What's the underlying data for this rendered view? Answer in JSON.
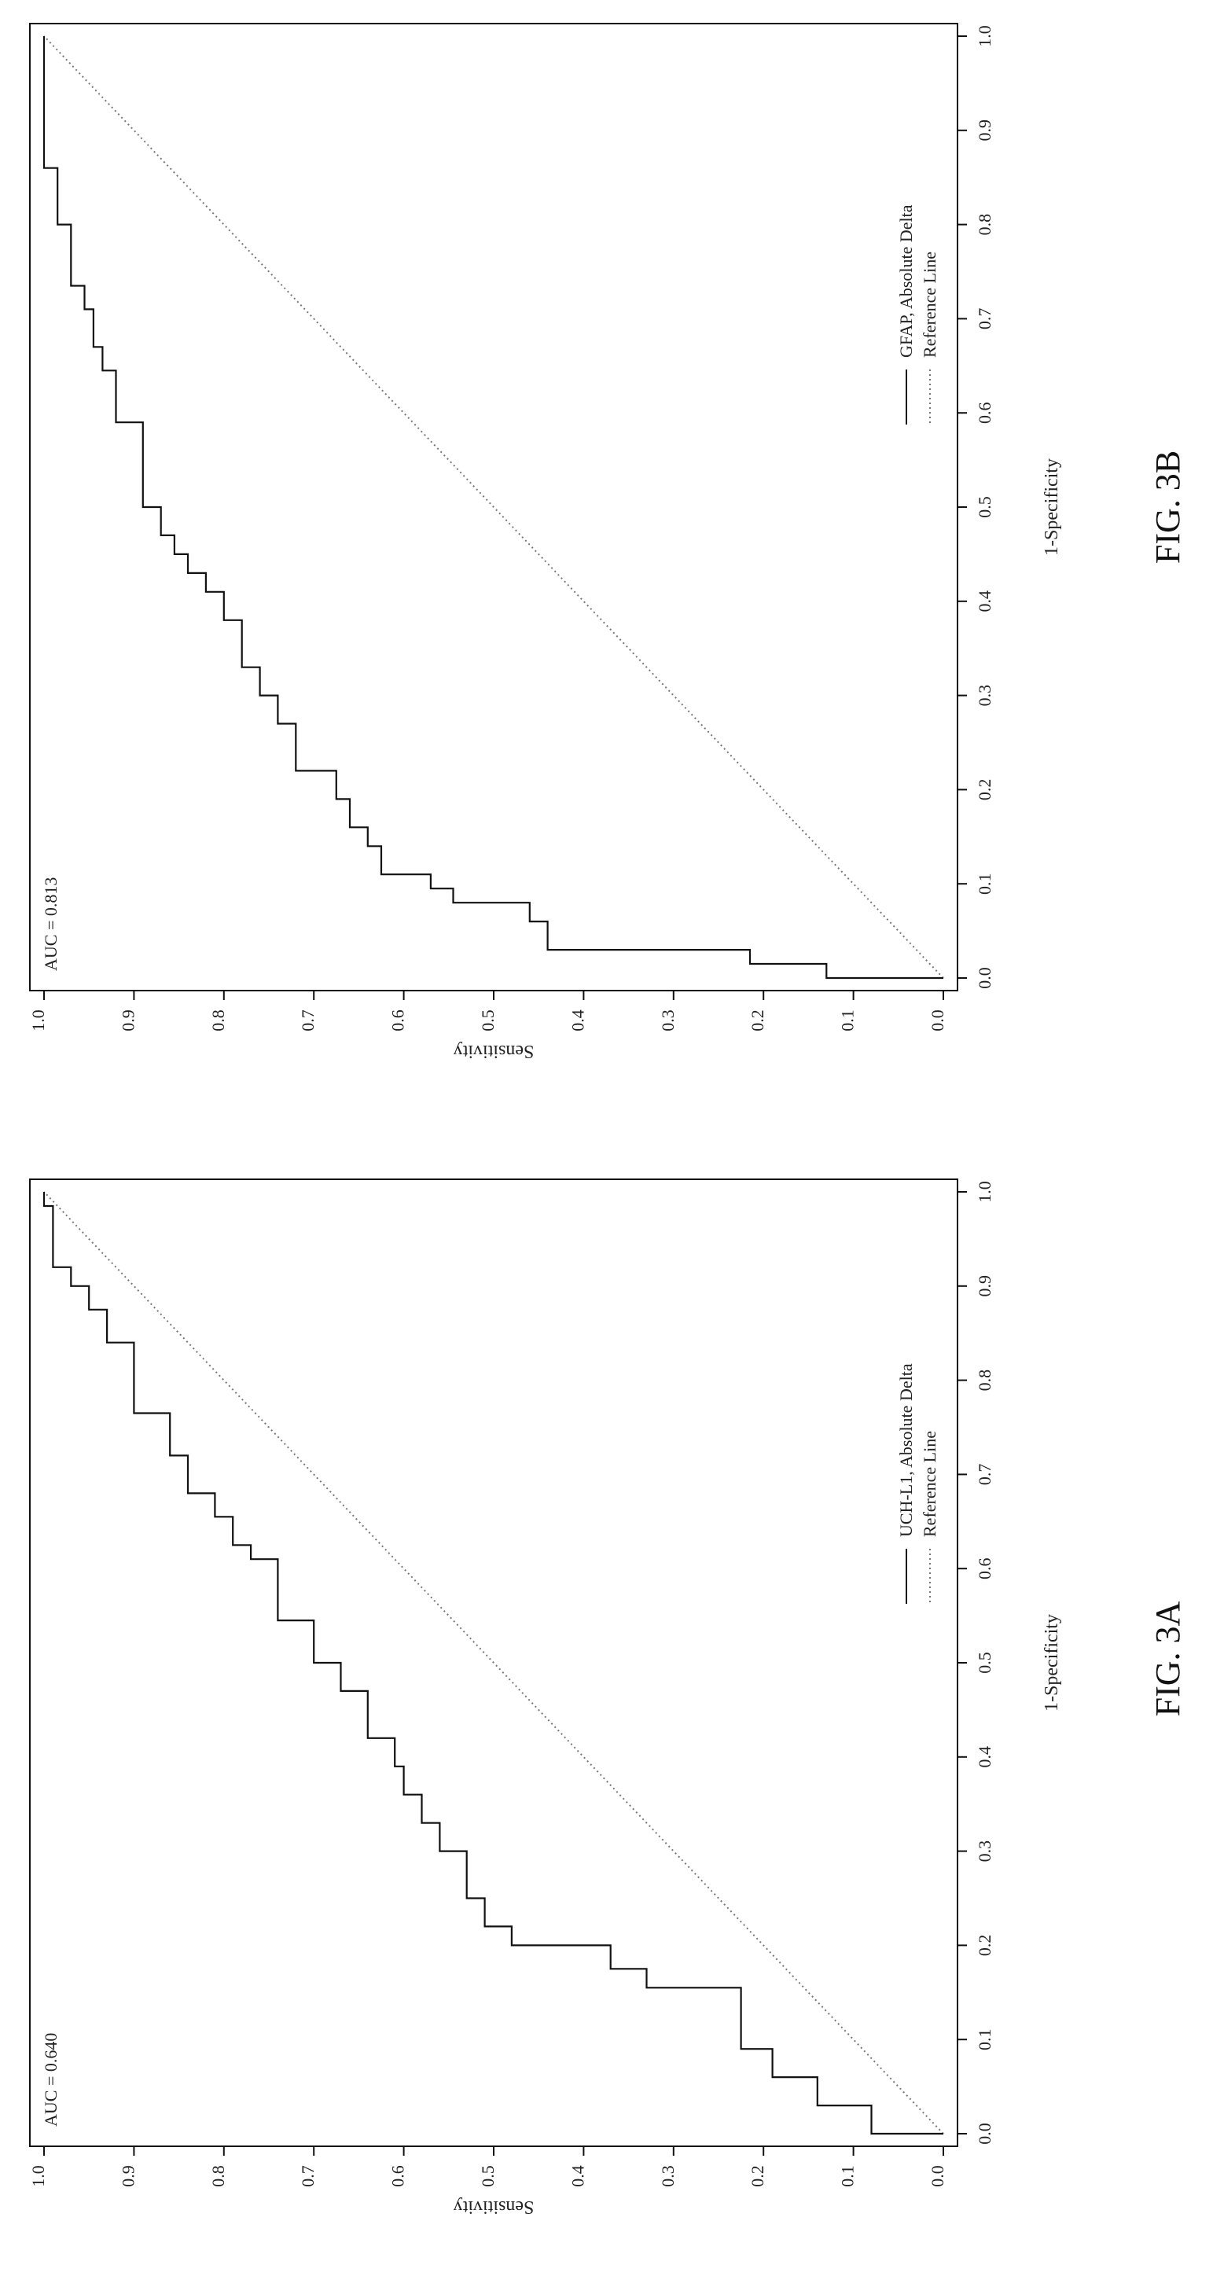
{
  "figures": [
    {
      "caption": "FIG. 3A",
      "auc_label": "AUC = 0.640",
      "legend": [
        "UCH-L1, Absolute Delta",
        "Reference Line"
      ]
    },
    {
      "caption": "FIG. 3B",
      "auc_label": "AUC = 0.813",
      "legend": [
        "GFAP, Absolute Delta",
        "Reference Line"
      ]
    }
  ],
  "chart_data": [
    {
      "type": "line",
      "xlabel": "1-Specificity",
      "ylabel": "Sensitivity",
      "xlim": [
        0,
        1
      ],
      "ylim": [
        0,
        1
      ],
      "ticks": [
        "0.0",
        "0.1",
        "0.2",
        "0.3",
        "0.4",
        "0.5",
        "0.6",
        "0.7",
        "0.8",
        "0.9",
        "1.0"
      ],
      "grid": false,
      "legend_position": "bottom-right",
      "annotation": "AUC = 0.640",
      "series": [
        {
          "name": "UCH-L1, Absolute Delta",
          "style": "step",
          "x": [
            0.0,
            0.0,
            0.03,
            0.03,
            0.06,
            0.06,
            0.09,
            0.09,
            0.155,
            0.155,
            0.175,
            0.175,
            0.2,
            0.2,
            0.22,
            0.22,
            0.25,
            0.25,
            0.3,
            0.3,
            0.33,
            0.33,
            0.36,
            0.36,
            0.39,
            0.39,
            0.42,
            0.42,
            0.47,
            0.47,
            0.5,
            0.5,
            0.545,
            0.545,
            0.61,
            0.61,
            0.625,
            0.625,
            0.655,
            0.655,
            0.68,
            0.68,
            0.72,
            0.72,
            0.765,
            0.765,
            0.84,
            0.84,
            0.875,
            0.875,
            0.9,
            0.9,
            0.92,
            0.92,
            0.985,
            0.985,
            1.0
          ],
          "y": [
            0.0,
            0.08,
            0.08,
            0.14,
            0.14,
            0.19,
            0.19,
            0.225,
            0.225,
            0.33,
            0.33,
            0.37,
            0.37,
            0.48,
            0.48,
            0.51,
            0.51,
            0.53,
            0.53,
            0.56,
            0.56,
            0.58,
            0.58,
            0.6,
            0.6,
            0.61,
            0.61,
            0.64,
            0.64,
            0.67,
            0.67,
            0.7,
            0.7,
            0.74,
            0.74,
            0.77,
            0.77,
            0.79,
            0.79,
            0.81,
            0.81,
            0.84,
            0.84,
            0.86,
            0.86,
            0.9,
            0.9,
            0.93,
            0.93,
            0.95,
            0.95,
            0.97,
            0.97,
            0.99,
            0.99,
            1.0,
            1.0
          ]
        },
        {
          "name": "Reference Line",
          "style": "dotted",
          "x": [
            0,
            1
          ],
          "y": [
            0,
            1
          ]
        }
      ]
    },
    {
      "type": "line",
      "xlabel": "1-Specificity",
      "ylabel": "Sensitivity",
      "xlim": [
        0,
        1
      ],
      "ylim": [
        0,
        1
      ],
      "ticks": [
        "0.0",
        "0.1",
        "0.2",
        "0.3",
        "0.4",
        "0.5",
        "0.6",
        "0.7",
        "0.8",
        "0.9",
        "1.0"
      ],
      "grid": false,
      "legend_position": "bottom-right",
      "annotation": "AUC = 0.813",
      "series": [
        {
          "name": "GFAP, Absolute Delta",
          "style": "step",
          "x": [
            0.0,
            0.0,
            0.015,
            0.015,
            0.03,
            0.03,
            0.06,
            0.06,
            0.08,
            0.08,
            0.095,
            0.095,
            0.11,
            0.11,
            0.14,
            0.14,
            0.16,
            0.16,
            0.19,
            0.19,
            0.22,
            0.22,
            0.27,
            0.27,
            0.3,
            0.3,
            0.33,
            0.33,
            0.38,
            0.38,
            0.41,
            0.41,
            0.43,
            0.43,
            0.45,
            0.45,
            0.47,
            0.47,
            0.5,
            0.5,
            0.59,
            0.59,
            0.645,
            0.645,
            0.67,
            0.67,
            0.71,
            0.71,
            0.735,
            0.735,
            0.8,
            0.8,
            0.86,
            0.86,
            0.89,
            0.89,
            1.0
          ],
          "y": [
            0.0,
            0.13,
            0.13,
            0.215,
            0.215,
            0.44,
            0.44,
            0.46,
            0.46,
            0.545,
            0.545,
            0.57,
            0.57,
            0.625,
            0.625,
            0.64,
            0.64,
            0.66,
            0.66,
            0.675,
            0.675,
            0.72,
            0.72,
            0.74,
            0.74,
            0.76,
            0.76,
            0.78,
            0.78,
            0.8,
            0.8,
            0.82,
            0.82,
            0.84,
            0.84,
            0.855,
            0.855,
            0.87,
            0.87,
            0.89,
            0.89,
            0.92,
            0.92,
            0.935,
            0.935,
            0.945,
            0.945,
            0.955,
            0.955,
            0.97,
            0.97,
            0.985,
            0.985,
            1.0,
            1.0,
            1.0,
            1.0
          ]
        },
        {
          "name": "Reference Line",
          "style": "dotted",
          "x": [
            0,
            1
          ],
          "y": [
            0,
            1
          ]
        }
      ]
    }
  ]
}
